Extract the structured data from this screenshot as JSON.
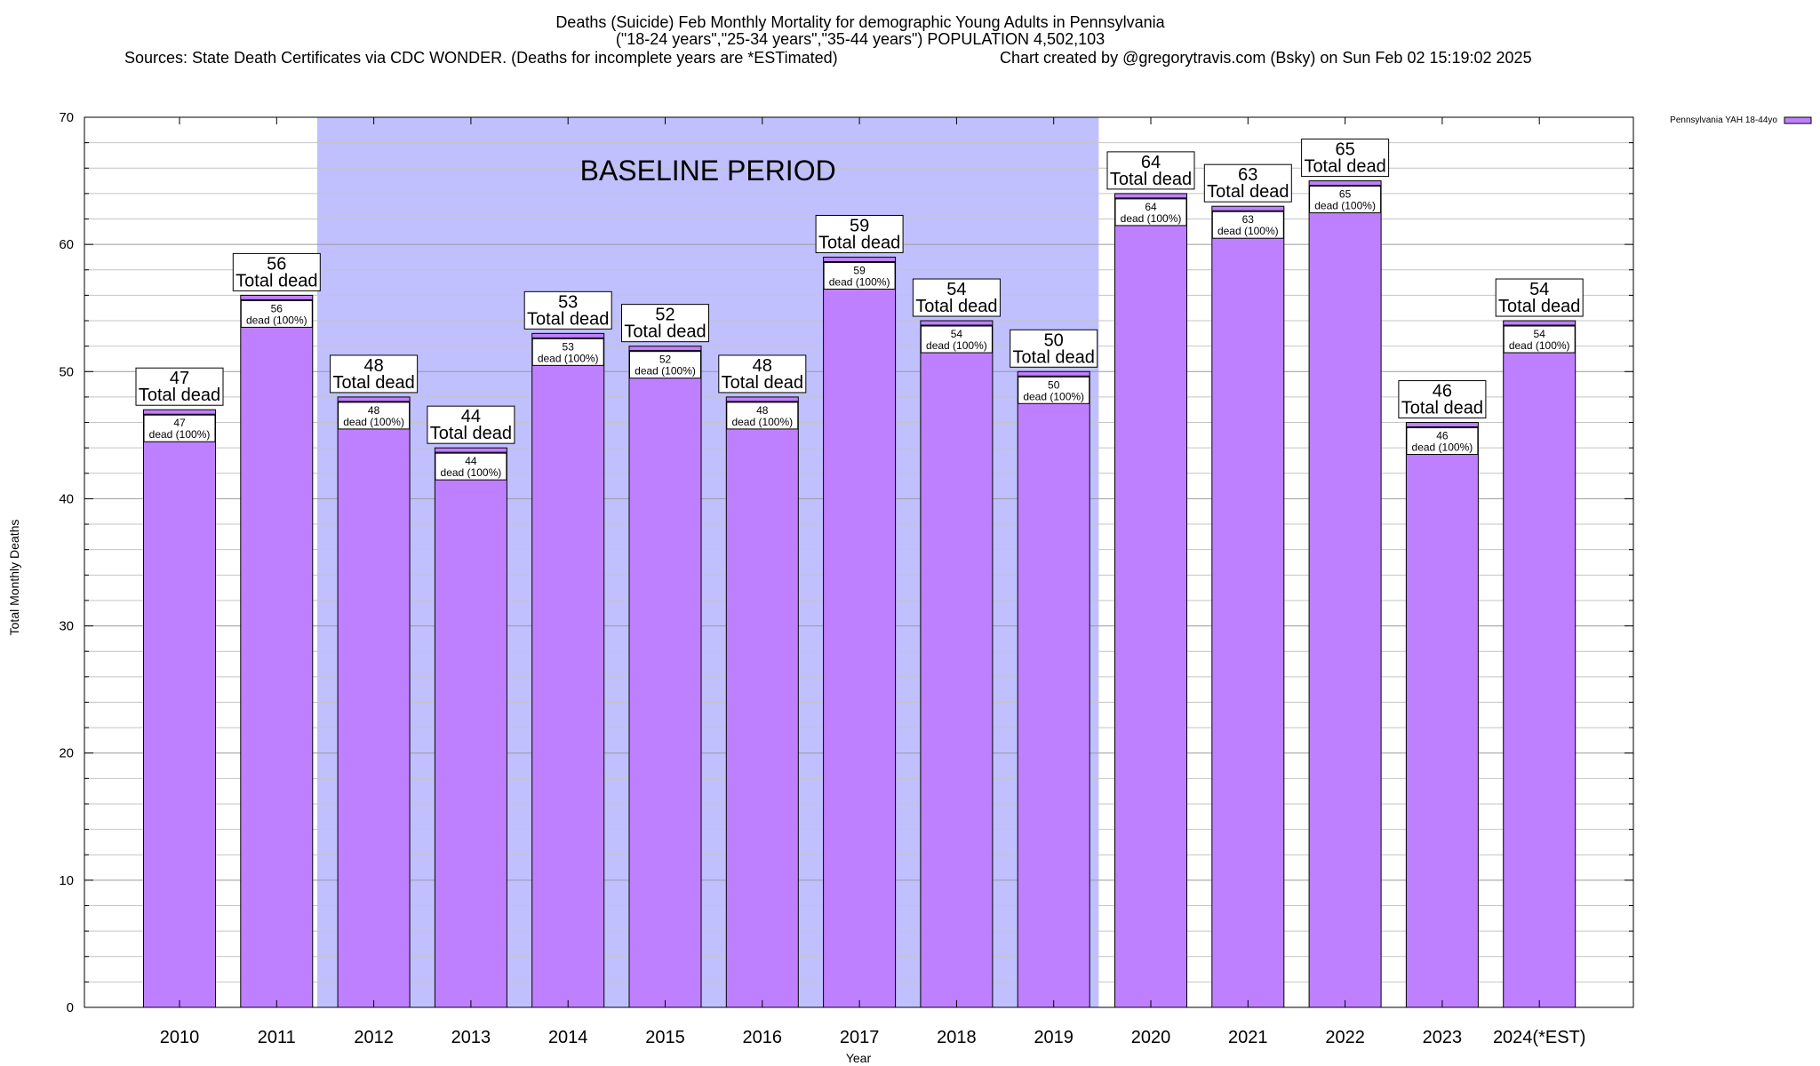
{
  "chart_data": {
    "type": "bar",
    "title_lines": [
      "Deaths (Suicide) Feb Monthly Mortality for demographic Young Adults in Pennsylvania",
      "(\"18-24 years\",\"25-34 years\",\"35-44 years\") POPULATION 4,502,103"
    ],
    "sources_text": "Sources: State Death Certificates via CDC WONDER. (Deaths for incomplete years are *ESTimated)",
    "credit_text": "Chart created by @gregorytravis.com (Bsky) on Sun Feb 02 15:19:02 2025",
    "xlabel": "Year",
    "ylabel": "Total Monthly Deaths",
    "ylim": [
      0,
      70
    ],
    "yticks": [
      0,
      10,
      20,
      30,
      40,
      50,
      60,
      70
    ],
    "categories": [
      "2010",
      "2011",
      "2012",
      "2013",
      "2014",
      "2015",
      "2016",
      "2017",
      "2018",
      "2019",
      "2020",
      "2021",
      "2022",
      "2023",
      "2024(*EST)"
    ],
    "series": [
      {
        "name": "Pennsylvania YAH 18-44yo",
        "color": "#bf80ff",
        "values": [
          47,
          56,
          48,
          44,
          53,
          52,
          48,
          59,
          54,
          50,
          64,
          63,
          65,
          46,
          54
        ]
      }
    ],
    "total_label": "Total dead",
    "inner_label_suffix": "dead (100%)",
    "baseline": {
      "label": "BASELINE PERIOD",
      "from_category": "2012",
      "to_category": "2019",
      "color": "#c0c0ff"
    },
    "grid": true,
    "legend_position": "top-right"
  }
}
